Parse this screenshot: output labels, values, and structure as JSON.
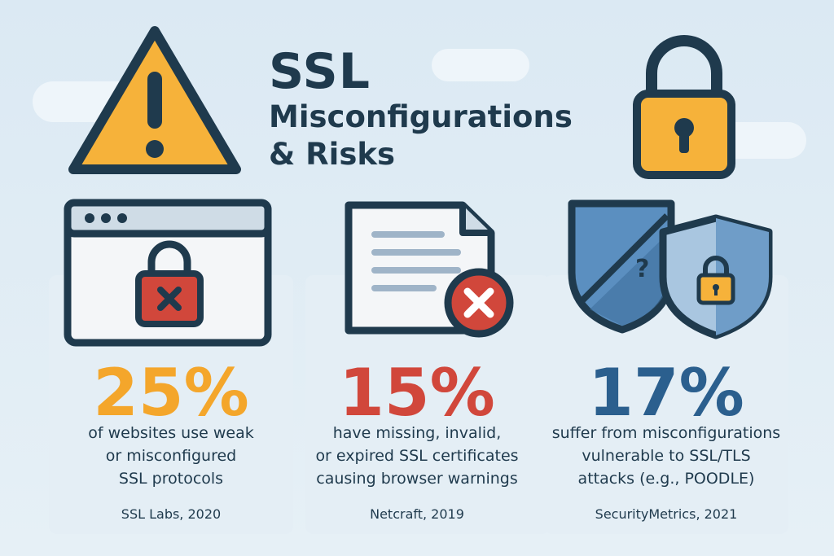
{
  "title": {
    "main": "SSL",
    "line2": "Misconfigurations",
    "line3": "& Risks"
  },
  "icons": [
    "warning-icon",
    "padlock-icon",
    "browser-window-icon",
    "broken-lock-icon",
    "document-icon",
    "error-x-icon",
    "shield-icon",
    "question-icon",
    "padlock-shield-icon"
  ],
  "colors": {
    "background": "#dbe9f3",
    "navy": "#1f3a4d",
    "warning_yellow": "#f6b23a",
    "stat_orange": "#f4a62b",
    "stat_red": "#d1473b",
    "stat_blue": "#2b5f8e"
  },
  "stats": [
    {
      "value": "25%",
      "desc_lines": [
        "of websites use weak",
        "or misconfigured",
        "SSL protocols"
      ],
      "source": "SSL Labs, 2020"
    },
    {
      "value": "15%",
      "desc_lines": [
        "have missing, invalid,",
        "or expired SSL certificates",
        "causing browser warnings"
      ],
      "source": "Netcraft, 2019"
    },
    {
      "value": "17%",
      "desc_lines": [
        "suffer from misconfigurations",
        "vulnerable to SSL/TLS",
        "attacks (e.g., POODLE)"
      ],
      "source": "SecurityMetrics, 2021"
    }
  ]
}
